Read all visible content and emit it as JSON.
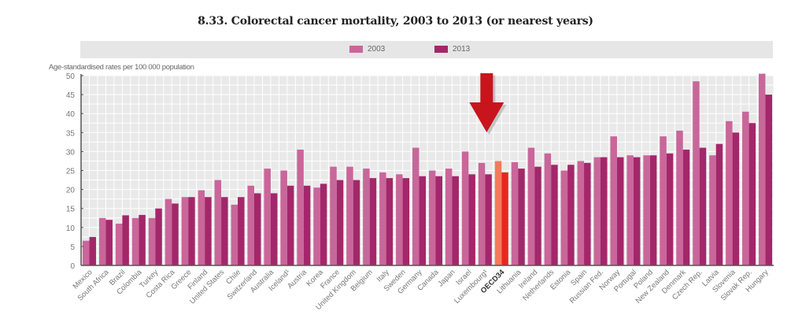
{
  "chart_data": {
    "type": "bar",
    "title": "8.33.  Colorectal cancer mortality, 2003 to 2013 (or nearest years)",
    "ylabel": "Age-standardised rates per 100 000 population",
    "xlabel": "",
    "ylim": [
      0,
      50
    ],
    "yticks": [
      0,
      5,
      10,
      15,
      20,
      25,
      30,
      35,
      40,
      45,
      50
    ],
    "grid": true,
    "legend_position": "top-center",
    "categories": [
      "Mexico",
      "South Africa",
      "Brazil",
      "Colombia",
      "Turkey",
      "Costa Rica",
      "Greece",
      "Finland",
      "United States",
      "Chile",
      "Switzerland",
      "Australia",
      "Iceland¹",
      "Austria",
      "Korea",
      "France",
      "United Kingdom",
      "Belgium",
      "Italy",
      "Sweden",
      "Germany",
      "Canada",
      "Japan",
      "Israel",
      "Luxembourg¹",
      "OECD34",
      "Lithuania",
      "Ireland",
      "Netherlands",
      "Estonia",
      "Spain",
      "Russian Fed.",
      "Norway",
      "Portugal",
      "Poland",
      "New Zealand",
      "Denmark",
      "Czech Rep.",
      "Latvia",
      "Slovenia",
      "Slovak Rep.",
      "Hungary"
    ],
    "highlight_category": "OECD34",
    "series": [
      {
        "name": "2003",
        "color": "#c9669a",
        "highlight_color": "#f47a5a",
        "values": [
          6.5,
          12.5,
          11,
          12.5,
          12.5,
          17.5,
          18,
          19.8,
          22.5,
          16,
          21,
          25.5,
          25,
          30.5,
          20.5,
          26,
          26,
          25.5,
          24.5,
          24,
          31,
          25,
          25.5,
          30,
          27,
          27.5,
          27.2,
          31,
          29.5,
          25,
          27.5,
          28.5,
          34,
          29,
          29,
          34,
          35.5,
          48.5,
          29,
          38,
          40.5,
          50.5
        ]
      },
      {
        "name": "2013",
        "color": "#a3276a",
        "highlight_color": "#e8261f",
        "values": [
          7.5,
          12,
          13.2,
          13.3,
          15,
          16.3,
          18,
          18,
          18,
          18,
          19,
          19,
          21,
          21,
          21.5,
          22.5,
          22.5,
          23,
          23,
          23,
          23.5,
          23.5,
          23.5,
          24,
          24,
          24.5,
          25.5,
          26,
          26.5,
          26.5,
          27,
          28.5,
          28.5,
          28.5,
          29,
          29.5,
          30.5,
          31,
          32,
          35,
          37.5,
          45
        ]
      }
    ],
    "annotation": {
      "type": "arrow",
      "direction": "down",
      "points_to": "Luxembourg¹",
      "color": "#c8141c"
    }
  }
}
